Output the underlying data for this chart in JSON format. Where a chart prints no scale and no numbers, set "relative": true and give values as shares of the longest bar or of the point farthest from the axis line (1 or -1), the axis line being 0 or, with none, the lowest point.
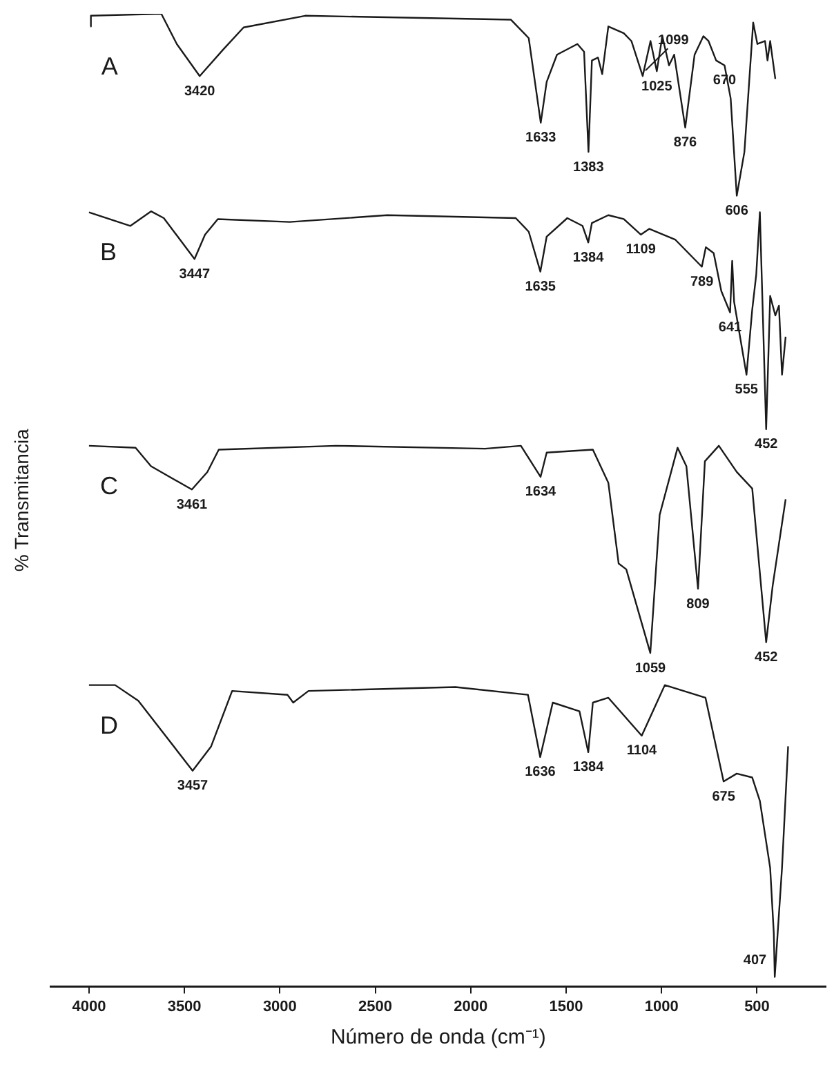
{
  "chart_data": {
    "type": "line",
    "relative": true,
    "xlabel": "Número de onda (cm⁻¹)",
    "ylabel": "% Transmitancia",
    "xlim": [
      4200,
      140
    ],
    "xticks": [
      4000,
      3500,
      3000,
      2500,
      2000,
      1500,
      1000,
      500
    ],
    "grid": false,
    "legend": false,
    "marker": "none",
    "line_style": "solid",
    "series": [
      {
        "name": "A",
        "color": "#1a1a1a",
        "x": [
          3993,
          3990,
          3621,
          3540,
          3420,
          3298,
          3190,
          2867,
          1790,
          1696,
          1633,
          1602,
          1548,
          1441,
          1406,
          1383,
          1365,
          1333,
          1311,
          1279,
          1198,
          1158,
          1099,
          1058,
          1025,
          996,
          961,
          934,
          876,
          827,
          781,
          754,
          714,
          670,
          638,
          606,
          566,
          520,
          498,
          458,
          445,
          431,
          404
        ],
        "values": [
          0.987,
          0.998,
          1.0,
          0.969,
          0.936,
          0.963,
          0.986,
          0.998,
          0.994,
          0.975,
          0.888,
          0.93,
          0.958,
          0.969,
          0.961,
          0.858,
          0.952,
          0.955,
          0.938,
          0.987,
          0.98,
          0.972,
          0.936,
          0.972,
          0.941,
          0.977,
          0.947,
          0.958,
          0.883,
          0.958,
          0.977,
          0.972,
          0.952,
          0.947,
          0.913,
          0.813,
          0.858,
          0.991,
          0.969,
          0.972,
          0.952,
          0.972,
          0.933
        ]
      },
      {
        "name": "B",
        "color": "#1a1a1a",
        "x": [
          4000,
          3783,
          3675,
          3608,
          3447,
          3392,
          3325,
          2948,
          2437,
          1764,
          1696,
          1635,
          1602,
          1494,
          1414,
          1384,
          1365,
          1279,
          1198,
          1109,
          1064,
          929,
          789,
          768,
          727,
          687,
          641,
          630,
          620,
          555,
          525,
          504,
          485,
          452,
          431,
          404,
          385,
          369,
          350
        ],
        "values": [
          0.796,
          0.782,
          0.797,
          0.79,
          0.748,
          0.773,
          0.789,
          0.786,
          0.793,
          0.79,
          0.776,
          0.735,
          0.771,
          0.79,
          0.782,
          0.765,
          0.785,
          0.793,
          0.789,
          0.773,
          0.779,
          0.768,
          0.74,
          0.76,
          0.754,
          0.715,
          0.693,
          0.746,
          0.704,
          0.629,
          0.696,
          0.732,
          0.796,
          0.573,
          0.71,
          0.69,
          0.7,
          0.629,
          0.668
        ]
      },
      {
        "name": "C",
        "color": "#1a1a1a",
        "x": [
          4000,
          3756,
          3675,
          3461,
          3380,
          3320,
          2706,
          1925,
          1737,
          1634,
          1602,
          1360,
          1279,
          1225,
          1185,
          1059,
          1010,
          916,
          870,
          809,
          773,
          700,
          606,
          525,
          452,
          418,
          350
        ],
        "values": [
          0.556,
          0.554,
          0.535,
          0.511,
          0.529,
          0.552,
          0.556,
          0.553,
          0.556,
          0.524,
          0.549,
          0.552,
          0.518,
          0.435,
          0.429,
          0.343,
          0.485,
          0.554,
          0.535,
          0.409,
          0.54,
          0.556,
          0.529,
          0.512,
          0.354,
          0.412,
          0.501
        ]
      },
      {
        "name": "D",
        "color": "#1a1a1a",
        "x": [
          4000,
          3863,
          3742,
          3457,
          3360,
          3250,
          2960,
          2930,
          2850,
          2080,
          1700,
          1636,
          1570,
          1430,
          1384,
          1360,
          1279,
          1104,
          983,
          770,
          675,
          606,
          525,
          485,
          431,
          412,
          407,
          369,
          337
        ],
        "values": [
          0.31,
          0.31,
          0.294,
          0.222,
          0.247,
          0.304,
          0.3,
          0.292,
          0.304,
          0.308,
          0.3,
          0.236,
          0.292,
          0.283,
          0.241,
          0.292,
          0.297,
          0.258,
          0.31,
          0.297,
          0.211,
          0.219,
          0.215,
          0.191,
          0.122,
          0.055,
          0.01,
          0.122,
          0.247
        ]
      }
    ],
    "annotations": [
      {
        "text": "3420",
        "x": 3420,
        "y": 0.936
      },
      {
        "text": "1633",
        "x": 1633,
        "y": 0.888
      },
      {
        "text": "1383",
        "x": 1383,
        "y": 0.858
      },
      {
        "text": "1025",
        "x": 1025,
        "y": 0.941
      },
      {
        "text": "1099",
        "x": 1099,
        "y": 0.936
      },
      {
        "text": "876",
        "x": 876,
        "y": 0.883
      },
      {
        "text": "670",
        "x": 670,
        "y": 0.947
      },
      {
        "text": "606",
        "x": 606,
        "y": 0.813
      },
      {
        "text": "3447",
        "x": 3447,
        "y": 0.748
      },
      {
        "text": "1635",
        "x": 1635,
        "y": 0.735
      },
      {
        "text": "1384",
        "x": 1384,
        "y": 0.765
      },
      {
        "text": "1109",
        "x": 1109,
        "y": 0.773
      },
      {
        "text": "789",
        "x": 789,
        "y": 0.74
      },
      {
        "text": "641",
        "x": 641,
        "y": 0.693
      },
      {
        "text": "555",
        "x": 555,
        "y": 0.629
      },
      {
        "text": "452",
        "x": 452,
        "y": 0.573
      },
      {
        "text": "3461",
        "x": 3461,
        "y": 0.511
      },
      {
        "text": "1634",
        "x": 1634,
        "y": 0.524
      },
      {
        "text": "1059",
        "x": 1059,
        "y": 0.343
      },
      {
        "text": "809",
        "x": 809,
        "y": 0.409
      },
      {
        "text": "452",
        "x": 452,
        "y": 0.354
      },
      {
        "text": "3457",
        "x": 3457,
        "y": 0.222
      },
      {
        "text": "1636",
        "x": 1636,
        "y": 0.236
      },
      {
        "text": "1384",
        "x": 1384,
        "y": 0.241
      },
      {
        "text": "1104",
        "x": 1104,
        "y": 0.258
      },
      {
        "text": "675",
        "x": 675,
        "y": 0.211
      },
      {
        "text": "407",
        "x": 407,
        "y": 0.01
      }
    ]
  }
}
